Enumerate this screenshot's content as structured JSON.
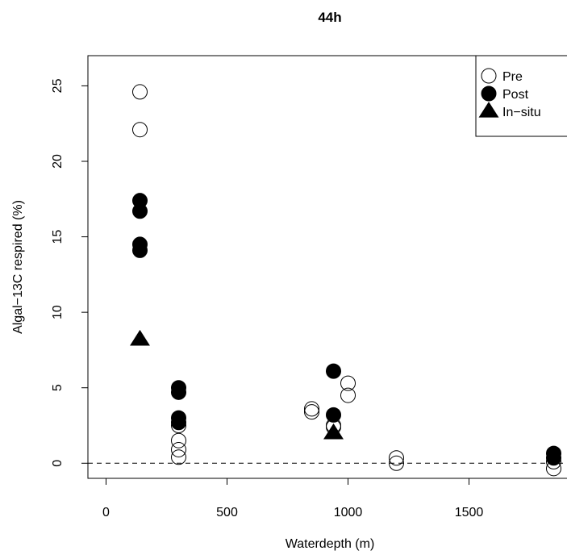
{
  "chart_data": {
    "type": "scatter",
    "title": "44h",
    "xlabel": "Waterdepth (m)",
    "ylabel": "Algal−13C respired (%)",
    "xlim": [
      -75,
      1925
    ],
    "ylim": [
      -1.0,
      27.0
    ],
    "xticks": [
      0,
      500,
      1000,
      1500
    ],
    "yticks": [
      0,
      5,
      10,
      15,
      20,
      25
    ],
    "xtick_labels": [
      "0",
      "500",
      "1000",
      "1500"
    ],
    "ytick_labels": [
      "0",
      "5",
      "10",
      "15",
      "20",
      "25"
    ],
    "reference_line": {
      "y": 0,
      "style": "dashed"
    },
    "legend_position": "top-right",
    "grid": false,
    "series": [
      {
        "name": "Pre",
        "marker": "open-circle",
        "points": [
          [
            140,
            24.6
          ],
          [
            140,
            22.1
          ],
          [
            300,
            2.5
          ],
          [
            300,
            1.5
          ],
          [
            300,
            0.9
          ],
          [
            300,
            0.4
          ],
          [
            850,
            3.6
          ],
          [
            850,
            3.4
          ],
          [
            940,
            2.5
          ],
          [
            940,
            2.4
          ],
          [
            1000,
            5.3
          ],
          [
            1000,
            4.5
          ],
          [
            1200,
            0.35
          ],
          [
            1200,
            0.0
          ],
          [
            1850,
            0.1
          ],
          [
            1850,
            -0.35
          ]
        ]
      },
      {
        "name": "Post",
        "marker": "filled-circle",
        "points": [
          [
            140,
            17.4
          ],
          [
            140,
            16.7
          ],
          [
            140,
            14.5
          ],
          [
            140,
            14.1
          ],
          [
            300,
            5.0
          ],
          [
            300,
            4.7
          ],
          [
            300,
            3.0
          ],
          [
            300,
            2.7
          ],
          [
            940,
            6.1
          ],
          [
            940,
            3.2
          ],
          [
            1850,
            0.65
          ],
          [
            1850,
            0.35
          ]
        ]
      },
      {
        "name": "In−situ",
        "marker": "filled-triangle",
        "points": [
          [
            140,
            8.2
          ],
          [
            940,
            2.0
          ]
        ]
      }
    ]
  }
}
